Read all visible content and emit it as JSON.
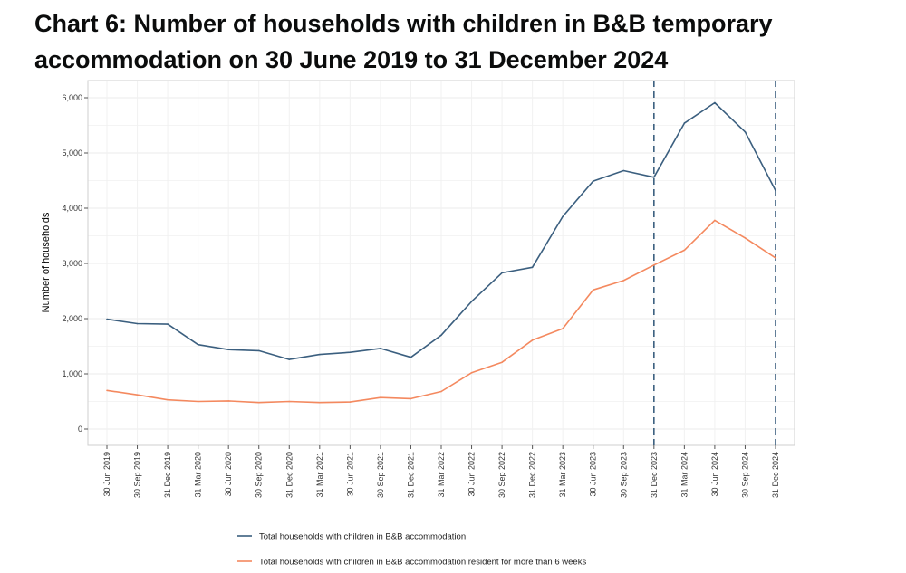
{
  "chart_data": {
    "type": "line",
    "title": "Chart 6: Number of households with children in B&B temporary accommodation on 30 June 2019 to 31 December 2024",
    "xlabel": "",
    "ylabel": "Number of households",
    "ylim": [
      0,
      6000
    ],
    "yticks": [
      0,
      1000,
      2000,
      3000,
      4000,
      5000,
      6000
    ],
    "ytick_labels": [
      "0",
      "1,000",
      "2,000",
      "3,000",
      "4,000",
      "5,000",
      "6,000"
    ],
    "grid": true,
    "legend_position": "bottom",
    "categories": [
      "30 Jun 2019",
      "30 Sep 2019",
      "31 Dec 2019",
      "31 Mar 2020",
      "30 Jun 2020",
      "30 Sep 2020",
      "31 Dec 2020",
      "31 Mar 2021",
      "30 Jun 2021",
      "30 Sep 2021",
      "31 Dec 2021",
      "31 Mar 2022",
      "30 Jun 2022",
      "30 Sep 2022",
      "31 Dec 2022",
      "31 Mar 2023",
      "30 Jun 2023",
      "30 Sep 2023",
      "31 Dec 2023",
      "31 Mar 2024",
      "30 Jun 2024",
      "30 Sep 2024",
      "31 Dec 2024"
    ],
    "series": [
      {
        "name": "Total households with children in B&B accommodation",
        "color": "#3b5f7f",
        "values": [
          1990,
          1910,
          1900,
          1530,
          1440,
          1420,
          1260,
          1350,
          1390,
          1460,
          1300,
          1700,
          2310,
          2830,
          2930,
          3850,
          4490,
          4680,
          4560,
          5540,
          5910,
          5380,
          4320
        ]
      },
      {
        "name": "Total households with children in B&B accommodation resident for more than 6 weeks",
        "color": "#f4895f",
        "values": [
          700,
          620,
          530,
          500,
          510,
          480,
          500,
          480,
          490,
          570,
          550,
          680,
          1020,
          1210,
          1610,
          1820,
          2520,
          2690,
          2970,
          3240,
          3780,
          3460,
          3100
        ]
      }
    ],
    "reference_lines": [
      "31 Dec 2023",
      "31 Dec 2024"
    ]
  }
}
